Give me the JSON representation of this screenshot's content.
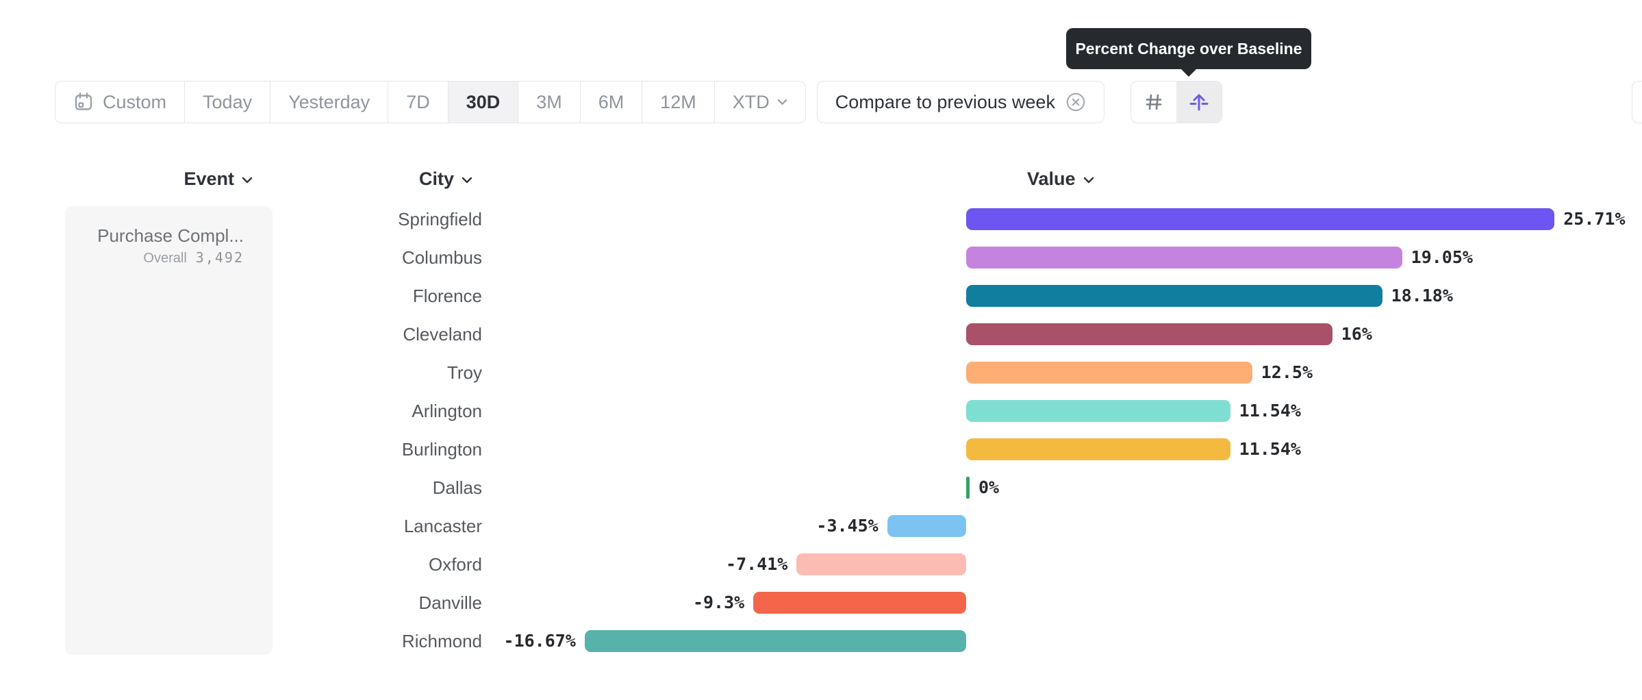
{
  "tooltip": {
    "text": "Percent Change over Baseline"
  },
  "toolbar": {
    "date_ranges": [
      {
        "label": "Custom",
        "icon": "calendar-icon",
        "selected": false,
        "chevron": false
      },
      {
        "label": "Today",
        "selected": false,
        "chevron": false
      },
      {
        "label": "Yesterday",
        "selected": false,
        "chevron": false
      },
      {
        "label": "7D",
        "selected": false,
        "chevron": false
      },
      {
        "label": "30D",
        "selected": true,
        "chevron": false
      },
      {
        "label": "3M",
        "selected": false,
        "chevron": false
      },
      {
        "label": "6M",
        "selected": false,
        "chevron": false
      },
      {
        "label": "12M",
        "selected": false,
        "chevron": false
      },
      {
        "label": "XTD",
        "selected": false,
        "chevron": true
      }
    ],
    "compare": {
      "label": "Compare to previous week",
      "remove_icon": "circle-x-icon"
    },
    "view_toggles": [
      {
        "icon": "hash-icon",
        "selected": false
      },
      {
        "icon": "baseline-arrow-icon",
        "selected": true
      }
    ]
  },
  "columns": {
    "event": "Event",
    "city": "City",
    "value": "Value"
  },
  "event_card": {
    "title": "Purchase Compl...",
    "overall_label": "Overall",
    "overall_value": "3,492"
  },
  "chart_data": {
    "type": "bar",
    "orientation": "horizontal",
    "title": "Percent Change over Baseline",
    "unit": "%",
    "baseline": 0,
    "xlim": [
      -18,
      27
    ],
    "categories": [
      "Springfield",
      "Columbus",
      "Florence",
      "Cleveland",
      "Troy",
      "Arlington",
      "Burlington",
      "Dallas",
      "Lancaster",
      "Oxford",
      "Danville",
      "Richmond"
    ],
    "values": [
      25.71,
      19.05,
      18.18,
      16,
      12.5,
      11.54,
      11.54,
      0,
      -3.45,
      -7.41,
      -9.3,
      -16.67
    ],
    "labels": [
      "25.71%",
      "19.05%",
      "18.18%",
      "16%",
      "12.5%",
      "11.54%",
      "11.54%",
      "0%",
      "-3.45%",
      "-7.41%",
      "-9.3%",
      "-16.67%"
    ],
    "colors": [
      "#6C55F0",
      "#C583E0",
      "#107F9F",
      "#A85169",
      "#FDAE75",
      "#7FDED2",
      "#F4BA3F",
      "#33A266",
      "#7CC3F2",
      "#FBBCB4",
      "#F3664B",
      "#57B3A9"
    ]
  },
  "theme": {
    "accent_purple": "#6F5CE9",
    "tooltip_bg": "#26292E",
    "selected_bg": "#F2F2F4",
    "border": "#E4E6E9",
    "zero_marker_color": "#33A266"
  }
}
